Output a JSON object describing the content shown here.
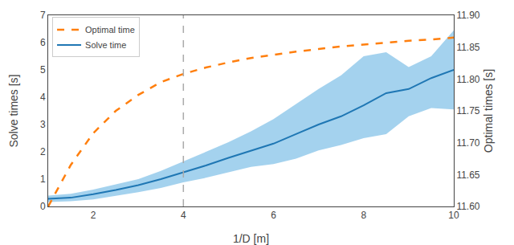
{
  "chart_data": {
    "type": "line",
    "xlabel": "1/D [m]",
    "ylabel": "Solve times [s]",
    "y2label": "Optimal times [s]",
    "x": [
      1.0,
      1.5,
      2.0,
      2.5,
      3.0,
      3.5,
      4.0,
      4.5,
      5.0,
      5.5,
      6.0,
      6.5,
      7.0,
      7.5,
      8.0,
      8.5,
      9.0,
      9.5,
      10.0
    ],
    "series": [
      {
        "type": "band",
        "color": "#5aade0",
        "lower": [
          0.16,
          0.19,
          0.26,
          0.38,
          0.52,
          0.68,
          0.88,
          1.05,
          1.25,
          1.45,
          1.55,
          1.75,
          2.05,
          2.25,
          2.5,
          2.65,
          3.3,
          3.6,
          3.55
        ],
        "upper": [
          0.4,
          0.46,
          0.62,
          0.8,
          1.0,
          1.3,
          1.65,
          2.0,
          2.35,
          2.75,
          3.2,
          3.75,
          4.3,
          4.8,
          5.5,
          5.65,
          5.1,
          5.5,
          6.45
        ]
      },
      {
        "name": "Solve time",
        "color": "#1f77b4",
        "line_style": "solid",
        "values": [
          0.28,
          0.32,
          0.45,
          0.6,
          0.78,
          1.0,
          1.25,
          1.5,
          1.78,
          2.05,
          2.3,
          2.65,
          3.0,
          3.3,
          3.7,
          4.15,
          4.3,
          4.7,
          5.0
        ]
      },
      {
        "name": "Optimal time",
        "color": "#ff7f0e",
        "line_style": "dashed",
        "axis": "y2",
        "values": [
          11.6,
          11.665,
          11.715,
          11.75,
          11.775,
          11.795,
          11.808,
          11.818,
          11.826,
          11.833,
          11.838,
          11.843,
          11.847,
          11.851,
          11.854,
          11.857,
          11.86,
          11.862,
          11.865
        ]
      }
    ],
    "vlines": [
      {
        "x": 4.0,
        "color": "#aaaaaa",
        "line_style": "dashed"
      }
    ],
    "xlim": [
      1.0,
      10.0
    ],
    "xticks": [
      2,
      4,
      6,
      8,
      10
    ],
    "ylim": [
      0,
      7
    ],
    "yticks": [
      0,
      1,
      2,
      3,
      4,
      5,
      6,
      7
    ],
    "y2lim": [
      11.6,
      11.9
    ],
    "y2ticks": [
      {
        "value": 11.6,
        "label": "11.60"
      },
      11.65,
      {
        "value": 11.7,
        "label": "11.70"
      },
      11.75,
      {
        "value": 11.8,
        "label": "11.80"
      },
      11.85,
      {
        "value": 11.9,
        "label": "11.90"
      }
    ],
    "legend": "upper left",
    "grid": false
  }
}
